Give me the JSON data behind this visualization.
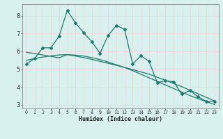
{
  "xlabel": "Humidex (Indice chaleur)",
  "bg_color": "#d8f0ee",
  "grid_color": "#f0d8d8",
  "line_color": "#1a7a6e",
  "xlim": [
    -0.5,
    23.5
  ],
  "ylim": [
    2.8,
    8.65
  ],
  "xtick_labels": [
    "0",
    "1",
    "2",
    "3",
    "4",
    "5",
    "6",
    "7",
    "8",
    "9",
    "10",
    "11",
    "12",
    "13",
    "14",
    "15",
    "16",
    "17",
    "18",
    "19",
    "20",
    "21",
    "22",
    "23"
  ],
  "ytick_values": [
    3,
    4,
    5,
    6,
    7,
    8
  ],
  "series1_x": [
    0,
    1,
    2,
    3,
    4,
    5,
    6,
    7,
    8,
    9,
    10,
    11,
    12,
    13,
    14,
    15,
    16,
    17,
    18,
    19,
    20,
    21,
    22,
    23
  ],
  "series1_y": [
    5.3,
    5.6,
    6.2,
    6.2,
    6.85,
    8.3,
    7.6,
    7.05,
    6.55,
    5.9,
    6.9,
    7.45,
    7.25,
    5.3,
    5.75,
    5.45,
    4.25,
    4.35,
    4.3,
    3.6,
    3.8,
    3.45,
    3.2,
    3.2
  ],
  "series2_x": [
    0,
    1,
    2,
    3,
    4,
    5,
    6,
    7,
    8,
    9,
    10,
    11,
    12,
    13,
    14,
    15,
    16,
    17,
    18,
    19,
    20,
    21,
    22,
    23
  ],
  "series2_y": [
    5.95,
    5.88,
    5.8,
    5.72,
    5.64,
    5.82,
    5.74,
    5.65,
    5.55,
    5.44,
    5.33,
    5.22,
    5.1,
    4.98,
    4.85,
    4.72,
    4.55,
    4.38,
    4.2,
    4.02,
    3.82,
    3.62,
    3.42,
    3.22
  ],
  "series3_x": [
    0,
    1,
    2,
    3,
    4,
    5,
    6,
    7,
    8,
    9,
    10,
    11,
    12,
    13,
    14,
    15,
    16,
    17,
    18,
    19,
    20,
    21,
    22,
    23
  ],
  "series3_y": [
    5.5,
    5.6,
    5.68,
    5.75,
    5.8,
    5.82,
    5.79,
    5.74,
    5.65,
    5.54,
    5.4,
    5.25,
    5.1,
    4.92,
    4.72,
    4.52,
    4.32,
    4.12,
    3.92,
    3.72,
    3.52,
    3.35,
    3.18,
    3.02
  ]
}
